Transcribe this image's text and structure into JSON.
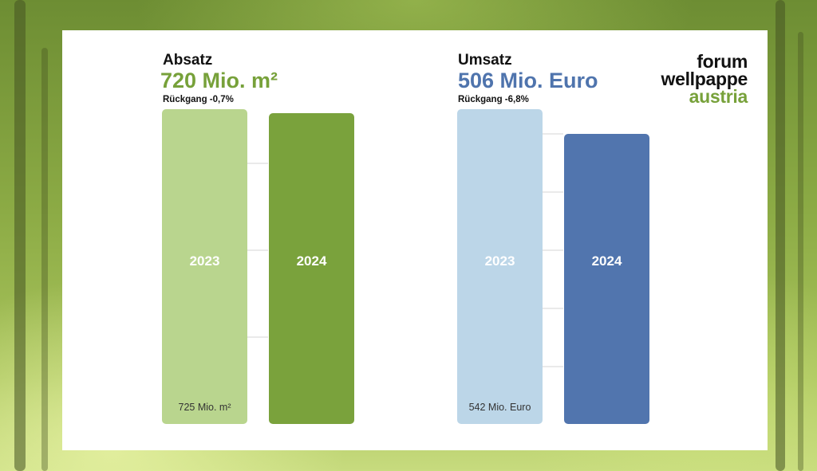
{
  "colors": {
    "green_light": "#b9d58e",
    "green_dark": "#7aa23c",
    "blue_light": "#bcd6e8",
    "blue_dark": "#5175ae",
    "green_accent": "#77a13a",
    "blue_accent": "#4f74ad"
  },
  "logo": {
    "line1": "forum",
    "line2": "wellpappe",
    "line3": "austria"
  },
  "chart_data": [
    {
      "type": "bar",
      "title": "Absatz",
      "headline_value": "720 Mio. m²",
      "subtitle": "Rückgang -0,7%",
      "categories": [
        "2023",
        "2024"
      ],
      "values": [
        725,
        720
      ],
      "unit": "Mio. m²",
      "bar_labels": [
        "725 Mio. m²",
        ""
      ],
      "ylim": [
        720,
        725
      ],
      "grid": true
    },
    {
      "type": "bar",
      "title": "Umsatz",
      "headline_value": "506 Mio. Euro",
      "subtitle": "Rückgang -6,8%",
      "categories": [
        "2023",
        "2024"
      ],
      "values": [
        542,
        506
      ],
      "unit": "Mio. Euro",
      "bar_labels": [
        "542 Mio. Euro",
        ""
      ],
      "ylim": [
        506,
        542
      ],
      "grid": true
    }
  ]
}
